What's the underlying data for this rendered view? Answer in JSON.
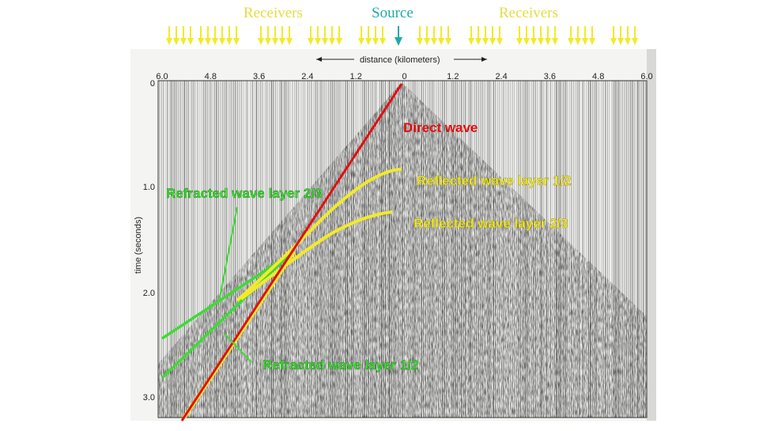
{
  "header": {
    "receivers_left": "Receivers",
    "source": "Source",
    "receivers_right": "Receivers"
  },
  "axes": {
    "distance_label": "distance (kilometers)",
    "time_label": "time (seconds)",
    "distance_ticks": [
      "6.0",
      "4.8",
      "3.6",
      "2.4",
      "1.2",
      "0",
      "1.2",
      "2.4",
      "3.6",
      "4.8",
      "6.0"
    ],
    "time_ticks": [
      "0",
      "1.0",
      "2.0",
      "3.0"
    ]
  },
  "labels": {
    "direct": "Direct wave",
    "reflected_12": "Reflected wave layer 1/2",
    "reflected_23": "Reflected wave layer 2/3",
    "refracted_23": "Refracted wave layer 2/3",
    "refracted_12": "Refracted wave layer 1/2"
  },
  "colors": {
    "direct": "#e01010",
    "reflected": "#f2ea2a",
    "refracted": "#3cdc32",
    "receiver_arrow": "#f2ea2a",
    "source_arrow": "#1faaa6"
  }
}
